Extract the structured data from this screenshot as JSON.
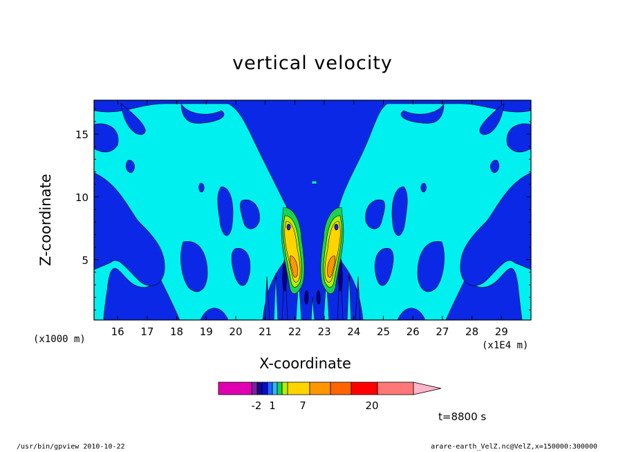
{
  "chart_data": {
    "type": "heatmap",
    "title": "vertical velocity",
    "xlabel": "X-coordinate",
    "ylabel": "Z-coordinate",
    "x_unit": "(x1E4 m)",
    "y_unit": "(x1000 m)",
    "xlim": [
      15.2,
      30.0
    ],
    "ylim": [
      0.2,
      17.7
    ],
    "x_ticks": [
      "16",
      "17",
      "18",
      "19",
      "20",
      "21",
      "22",
      "23",
      "24",
      "25",
      "26",
      "27",
      "28",
      "29"
    ],
    "y_ticks": [
      "5",
      "10",
      "15"
    ],
    "time_label": "t=8800 s",
    "colorbar": {
      "tick_labels": [
        "-2",
        "1",
        "7",
        "20"
      ],
      "levels": [
        "<-5",
        "-5..-3",
        "-3..-2",
        "-2..-1",
        "-1..0",
        "0..1",
        "1..2",
        "2..3",
        "3..7",
        "7..10",
        "10..15",
        "15..20",
        "20..30",
        ">30"
      ],
      "colors": [
        "#e000b0",
        "#7a1fa2",
        "#140a8c",
        "#0a0ad2",
        "#1e64ff",
        "#32b4ff",
        "#18d250",
        "#b4f000",
        "#ffd400",
        "#ff9600",
        "#ff6400",
        "#ff0000",
        "#ff7878",
        "#ffb4c8"
      ]
    },
    "field_colors": {
      "negative_weak": "#0a28e6",
      "positive_weak": "#00f0f0",
      "negative_strong": "#000080"
    }
  },
  "footer": {
    "left": "/usr/bin/gpview   2010-10-22",
    "right": "arare-earth_VelZ.nc@VelZ,x=150000:300000"
  }
}
